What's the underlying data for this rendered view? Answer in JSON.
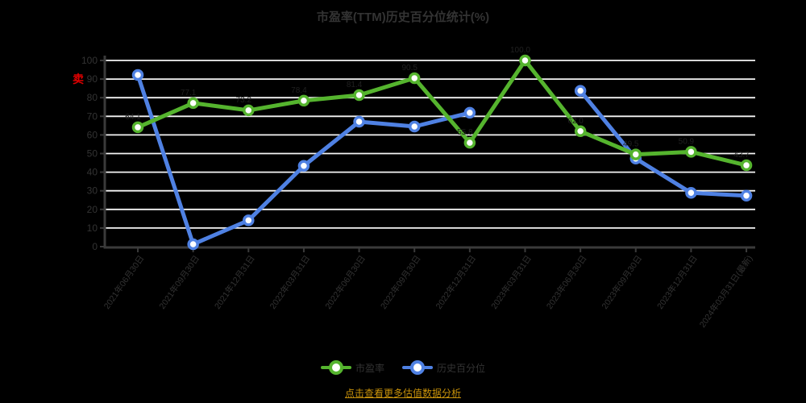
{
  "title": "市盈率(TTM)历史百分位统计(%)",
  "footer": {
    "link_label": "点击查看更多估值数据分析",
    "link_color": "#c8920a"
  },
  "legend": {
    "position": "bottom",
    "items": [
      {
        "label": "市盈率",
        "color": "#55b42e"
      },
      {
        "label": "历史百分位",
        "color": "#4f81e3"
      }
    ]
  },
  "y_axis": {
    "ticks": [
      0,
      10,
      20,
      30,
      40,
      50,
      60,
      70,
      80,
      90,
      100
    ],
    "sell_marker": {
      "label": "卖",
      "at_value": 90,
      "color": "#e00000"
    }
  },
  "chart_data": {
    "type": "line",
    "title": "市盈率(TTM)历史百分位统计(%)",
    "categories": [
      "2021年06月30日",
      "2021年09月30日",
      "2021年12月31日",
      "2022年03月31日",
      "2022年06月30日",
      "2022年09月30日",
      "2022年12月31日",
      "2023年03月31日",
      "2023年06月30日",
      "2023年09月30日",
      "2023年12月31日",
      "2024年03月31日(最新)"
    ],
    "series": [
      {
        "name": "历史百分位",
        "color": "#4f81e3",
        "show_labels": false,
        "values": [
          92.2,
          1.3,
          14.1,
          43.4,
          67.1,
          64.5,
          71.9,
          null,
          83.7,
          47.3,
          28.9,
          27.4
        ]
      },
      {
        "name": "市盈率",
        "color": "#55b42e",
        "show_labels": true,
        "values": [
          64.1,
          77.1,
          73.2,
          78.4,
          81.4,
          90.5,
          55.8,
          100.0,
          62.0,
          49.5,
          50.9,
          43.7
        ]
      }
    ],
    "ylim": [
      0,
      100
    ],
    "ytick_step": 10,
    "grid": true,
    "legend_position": "bottom",
    "colors": {
      "background": "#000000",
      "grid": "#f5f5f5",
      "axis": "#3a3a3a",
      "text": "#333333",
      "point_fill": "#ffffff",
      "value_label": "#202020",
      "sell": "#e00000",
      "link": "#c8920a"
    }
  }
}
